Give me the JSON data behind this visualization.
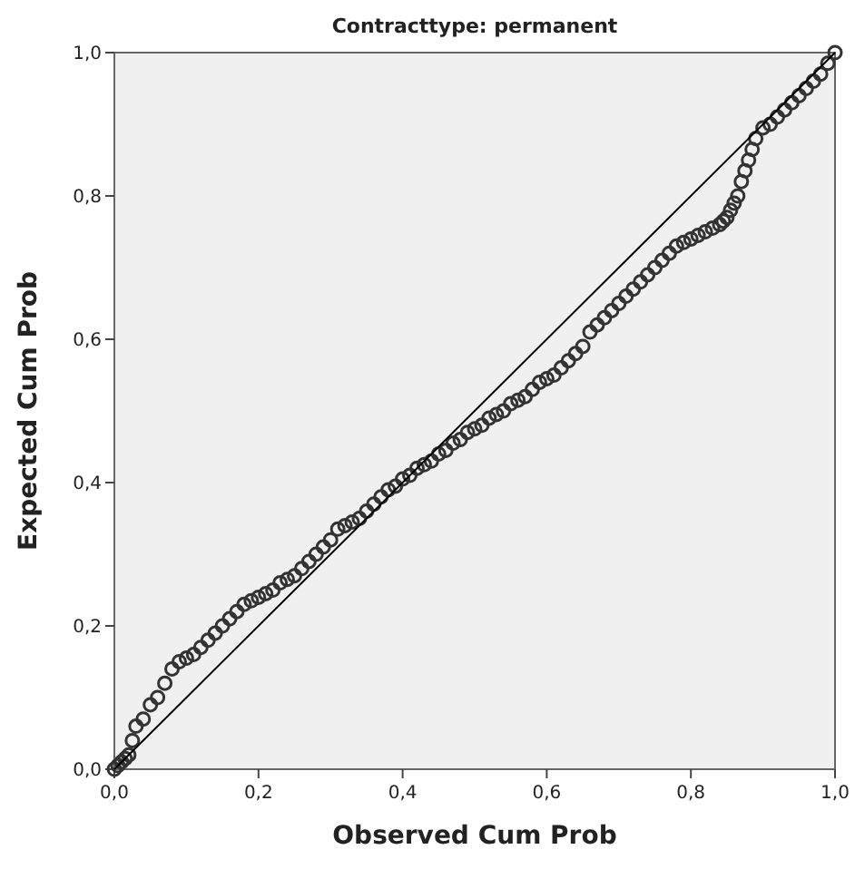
{
  "chart_data": {
    "type": "scatter",
    "title": "Contracttype: permanent",
    "xlabel": "Observed Cum Prob",
    "ylabel": "Expected Cum Prob",
    "xlim": [
      0,
      1
    ],
    "ylim": [
      0,
      1
    ],
    "xticks": [
      {
        "value": 0,
        "label": "0,0"
      },
      {
        "value": 0.2,
        "label": "0,2"
      },
      {
        "value": 0.4,
        "label": "0,4"
      },
      {
        "value": 0.6,
        "label": "0,6"
      },
      {
        "value": 0.8,
        "label": "0,8"
      },
      {
        "value": 1,
        "label": "1,0"
      }
    ],
    "yticks": [
      {
        "value": 0,
        "label": "0,0"
      },
      {
        "value": 0.2,
        "label": "0,2"
      },
      {
        "value": 0.4,
        "label": "0,4"
      },
      {
        "value": 0.6,
        "label": "0,6"
      },
      {
        "value": 0.8,
        "label": "0,8"
      },
      {
        "value": 1,
        "label": "1,0"
      }
    ],
    "marker": "circle",
    "grid": false,
    "series": [
      {
        "color": "#333333",
        "x": [
          0,
          0.005,
          0.01,
          0.015,
          0.02,
          0.025,
          0.03,
          0.04,
          0.05,
          0.06,
          0.07,
          0.08,
          0.09,
          0.1,
          0.11,
          0.12,
          0.13,
          0.14,
          0.15,
          0.16,
          0.17,
          0.18,
          0.19,
          0.2,
          0.21,
          0.22,
          0.23,
          0.24,
          0.25,
          0.26,
          0.27,
          0.28,
          0.29,
          0.3,
          0.31,
          0.32,
          0.33,
          0.34,
          0.35,
          0.36,
          0.37,
          0.38,
          0.39,
          0.4,
          0.41,
          0.42,
          0.43,
          0.44,
          0.45,
          0.46,
          0.47,
          0.48,
          0.49,
          0.5,
          0.51,
          0.52,
          0.53,
          0.54,
          0.55,
          0.56,
          0.57,
          0.58,
          0.59,
          0.6,
          0.61,
          0.62,
          0.63,
          0.64,
          0.65,
          0.66,
          0.67,
          0.68,
          0.69,
          0.7,
          0.71,
          0.72,
          0.73,
          0.74,
          0.75,
          0.76,
          0.77,
          0.78,
          0.79,
          0.8,
          0.81,
          0.82,
          0.83,
          0.84,
          0.845,
          0.85,
          0.855,
          0.86,
          0.865,
          0.87,
          0.875,
          0.88,
          0.885,
          0.89,
          0.9,
          0.91,
          0.92,
          0.93,
          0.94,
          0.95,
          0.96,
          0.97,
          0.98,
          0.99,
          1
        ],
        "values": [
          0,
          0.005,
          0.01,
          0.015,
          0.02,
          0.04,
          0.06,
          0.07,
          0.09,
          0.1,
          0.12,
          0.14,
          0.15,
          0.155,
          0.16,
          0.17,
          0.18,
          0.19,
          0.2,
          0.21,
          0.22,
          0.23,
          0.235,
          0.24,
          0.245,
          0.25,
          0.26,
          0.265,
          0.27,
          0.28,
          0.29,
          0.3,
          0.31,
          0.32,
          0.335,
          0.34,
          0.345,
          0.35,
          0.36,
          0.37,
          0.38,
          0.39,
          0.395,
          0.405,
          0.41,
          0.42,
          0.425,
          0.43,
          0.44,
          0.445,
          0.455,
          0.46,
          0.47,
          0.475,
          0.48,
          0.49,
          0.495,
          0.5,
          0.51,
          0.515,
          0.52,
          0.53,
          0.54,
          0.545,
          0.55,
          0.56,
          0.57,
          0.58,
          0.59,
          0.61,
          0.62,
          0.63,
          0.64,
          0.65,
          0.66,
          0.67,
          0.68,
          0.69,
          0.7,
          0.71,
          0.72,
          0.73,
          0.735,
          0.74,
          0.745,
          0.75,
          0.755,
          0.76,
          0.765,
          0.77,
          0.78,
          0.79,
          0.8,
          0.82,
          0.835,
          0.85,
          0.865,
          0.88,
          0.895,
          0.9,
          0.91,
          0.92,
          0.93,
          0.94,
          0.95,
          0.96,
          0.97,
          0.985,
          1
        ]
      },
      {
        "type": "line",
        "color": "#000000",
        "x": [
          0,
          1
        ],
        "values": [
          0,
          1
        ],
        "marker": "none"
      }
    ]
  }
}
